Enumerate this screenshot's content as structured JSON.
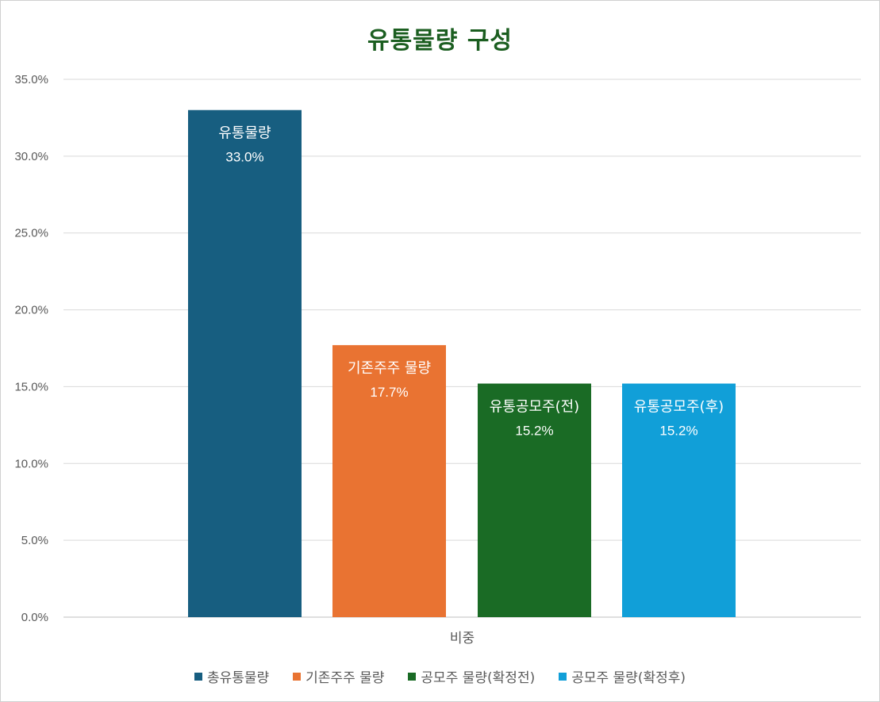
{
  "chart_data": {
    "type": "bar",
    "title": "유통물량 구성",
    "categories": [
      "비중"
    ],
    "series": [
      {
        "name": "총유통물량",
        "bar_label": "유통물량",
        "value": 33.0,
        "value_label": "33.0%",
        "color": "#175e80"
      },
      {
        "name": "기존주주 물량",
        "bar_label": "기존주주 물량",
        "value": 17.7,
        "value_label": "17.7%",
        "color": "#e97332"
      },
      {
        "name": "공모주 물량(확정전)",
        "bar_label": "유통공모주(전)",
        "value": 15.2,
        "value_label": "15.2%",
        "color": "#1a6b25"
      },
      {
        "name": "공모주 물량(확정후)",
        "bar_label": "유통공모주(후)",
        "value": 15.2,
        "value_label": "15.2%",
        "color": "#119fd8"
      }
    ],
    "ylim": [
      0,
      35
    ],
    "y_ticks": [
      "0.0%",
      "5.0%",
      "10.0%",
      "15.0%",
      "20.0%",
      "25.0%",
      "30.0%",
      "35.0%"
    ],
    "xlabel": "",
    "ylabel": "",
    "grid": true,
    "legend": "bottom"
  }
}
